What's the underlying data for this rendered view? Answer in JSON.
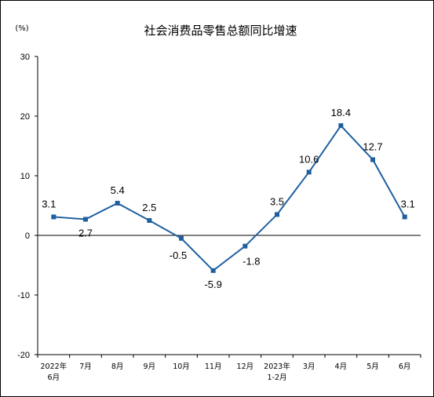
{
  "chart_data": {
    "type": "line",
    "title": "社会消费品零售总额同比增速",
    "unit": "(%)",
    "ylim": [
      -20,
      30
    ],
    "yticks": [
      "30",
      "20",
      "10",
      "0",
      "-10",
      "-20"
    ],
    "categories": [
      [
        "2022年",
        "6月"
      ],
      [
        "7月"
      ],
      [
        "8月"
      ],
      [
        "9月"
      ],
      [
        "10月"
      ],
      [
        "11月"
      ],
      [
        "12月"
      ],
      [
        "2023年",
        "1-2月"
      ],
      [
        "3月"
      ],
      [
        "4月"
      ],
      [
        "5月"
      ],
      [
        "6月"
      ]
    ],
    "values": [
      3.1,
      2.7,
      5.4,
      2.5,
      -0.5,
      -5.9,
      -1.8,
      3.5,
      10.6,
      18.4,
      12.7,
      3.1
    ],
    "labels": [
      "3.1",
      "2.7",
      "5.4",
      "2.5",
      "-0.5",
      "-5.9",
      "-1.8",
      "3.5",
      "10.6",
      "18.4",
      "12.7",
      "3.1"
    ],
    "line_color": "#1f5f9f",
    "grid": false
  }
}
